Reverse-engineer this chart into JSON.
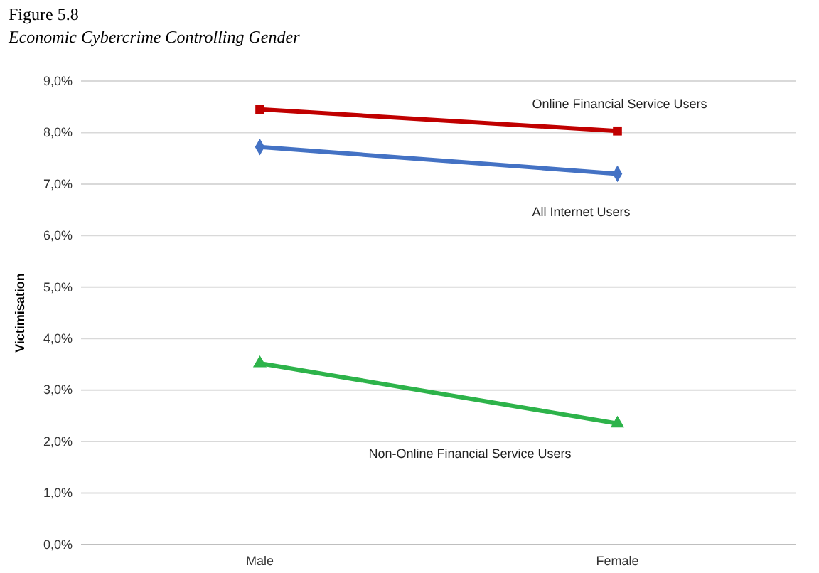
{
  "chart_data": {
    "type": "line",
    "title": "Figure 5.8",
    "subtitle": "Economic Cybercrime Controlling Gender",
    "ylabel": "Victimisation",
    "categories": [
      "Male",
      "Female"
    ],
    "series": [
      {
        "name": "Online Financial Service Users",
        "color": "#c00000",
        "values": [
          8.45,
          8.03
        ],
        "marker": "square"
      },
      {
        "name": "All Internet Users",
        "color": "#4472c4",
        "values": [
          7.72,
          7.2
        ],
        "marker": "diamond"
      },
      {
        "name": "Non-Online Financial Service Users",
        "color": "#2db34a",
        "values": [
          3.52,
          2.35
        ],
        "marker": "triangle"
      }
    ],
    "ylim": [
      0,
      9
    ],
    "yticks": [
      {
        "value": 0,
        "label": "0,0%"
      },
      {
        "value": 1,
        "label": "1,0%"
      },
      {
        "value": 2,
        "label": "2,0%"
      },
      {
        "value": 3,
        "label": "3,0%"
      },
      {
        "value": 4,
        "label": "4,0%"
      },
      {
        "value": 5,
        "label": "5,0%"
      },
      {
        "value": 6,
        "label": "6,0%"
      },
      {
        "value": 7,
        "label": "7,0%"
      },
      {
        "value": 8,
        "label": "8,0%"
      },
      {
        "value": 9,
        "label": "9,0%"
      }
    ],
    "grid": "y",
    "line_style": "solid"
  }
}
